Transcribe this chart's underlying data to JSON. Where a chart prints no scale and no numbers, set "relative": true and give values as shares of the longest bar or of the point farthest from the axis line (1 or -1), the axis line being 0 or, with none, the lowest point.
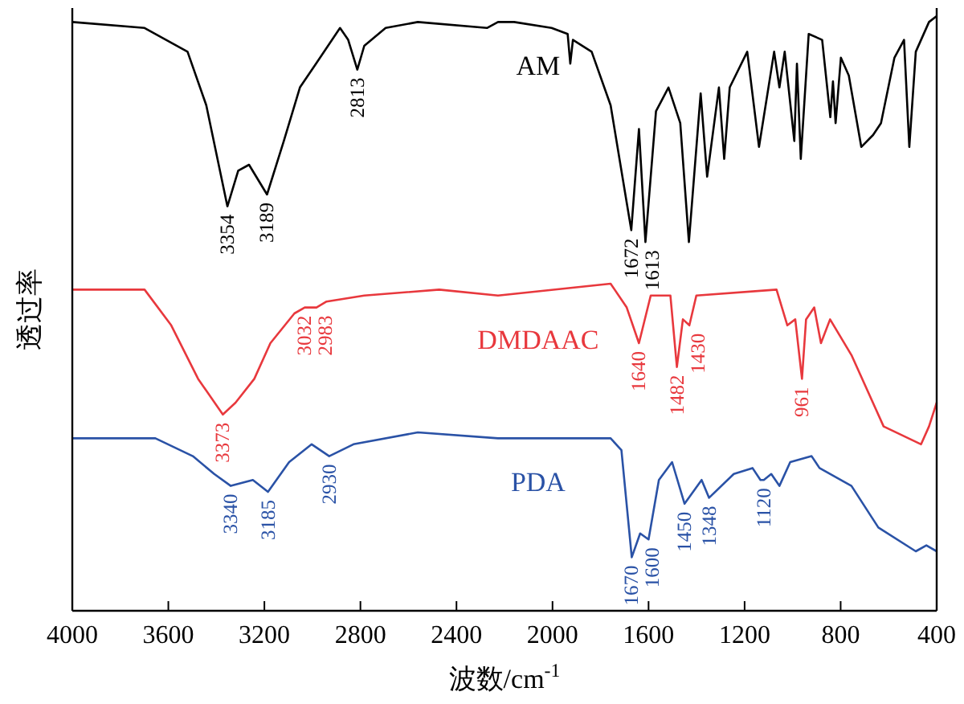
{
  "chart_data": {
    "type": "line",
    "relative": true,
    "xlabel": "波数/cm$^{-1}$",
    "ylabel": "透过率",
    "xlim": [
      4000,
      400
    ],
    "xticks": [
      4000,
      3600,
      3200,
      2800,
      2400,
      2000,
      1600,
      1200,
      800,
      400
    ],
    "grid": false,
    "marker": "none",
    "line_style": "solid",
    "series": [
      {
        "name": "AM",
        "color": "#000000",
        "x": [
          4000,
          3699,
          3520,
          3442,
          3354,
          3309,
          3264,
          3189,
          3119,
          3052,
          2985,
          2885,
          2851,
          2813,
          2784,
          2695,
          2561,
          2273,
          2227,
          2160,
          2004,
          1937,
          1926,
          1915,
          1837,
          1758,
          1672,
          1640,
          1613,
          1569,
          1517,
          1468,
          1432,
          1383,
          1356,
          1307,
          1285,
          1262,
          1189,
          1140,
          1077,
          1055,
          1033,
          993,
          982,
          966,
          933,
          877,
          843,
          832,
          821,
          799,
          766,
          714,
          665,
          632,
          576,
          536,
          514,
          487,
          432,
          400
        ],
        "values": [
          0.99,
          0.98,
          0.94,
          0.85,
          0.68,
          0.74,
          0.75,
          0.7,
          0.79,
          0.88,
          0.92,
          0.98,
          0.96,
          0.91,
          0.95,
          0.98,
          0.99,
          0.98,
          0.99,
          0.99,
          0.98,
          0.97,
          0.92,
          0.96,
          0.94,
          0.85,
          0.64,
          0.81,
          0.62,
          0.84,
          0.88,
          0.82,
          0.62,
          0.87,
          0.73,
          0.88,
          0.76,
          0.88,
          0.94,
          0.78,
          0.94,
          0.88,
          0.94,
          0.79,
          0.92,
          0.76,
          0.97,
          0.96,
          0.83,
          0.89,
          0.82,
          0.93,
          0.9,
          0.78,
          0.8,
          0.82,
          0.93,
          0.96,
          0.78,
          0.94,
          0.99,
          1.0
        ]
      },
      {
        "name": "DMDAAC",
        "color": "#e8383d",
        "x": [
          4000,
          3699,
          3588,
          3476,
          3373,
          3320,
          3242,
          3175,
          3075,
          3032,
          2983,
          2941,
          2784,
          2472,
          2227,
          1758,
          1691,
          1640,
          1591,
          1509,
          1482,
          1457,
          1430,
          1401,
          1067,
          1022,
          989,
          961,
          944,
          910,
          882,
          844,
          755,
          621,
          465,
          432,
          400
        ],
        "values": [
          0.54,
          0.54,
          0.48,
          0.39,
          0.33,
          0.35,
          0.39,
          0.45,
          0.5,
          0.51,
          0.51,
          0.52,
          0.53,
          0.54,
          0.53,
          0.55,
          0.51,
          0.45,
          0.53,
          0.53,
          0.41,
          0.49,
          0.48,
          0.53,
          0.54,
          0.48,
          0.49,
          0.39,
          0.49,
          0.51,
          0.45,
          0.49,
          0.43,
          0.31,
          0.28,
          0.31,
          0.35
        ]
      },
      {
        "name": "PDA",
        "color": "#2a52a6",
        "x": [
          4000,
          3654,
          3498,
          3409,
          3340,
          3248,
          3185,
          3097,
          3003,
          2930,
          2829,
          2561,
          2227,
          1758,
          1713,
          1670,
          1635,
          1600,
          1557,
          1502,
          1450,
          1379,
          1348,
          1245,
          1167,
          1134,
          1120,
          1089,
          1055,
          1010,
          921,
          888,
          755,
          643,
          487,
          443,
          400
        ],
        "values": [
          0.29,
          0.29,
          0.26,
          0.23,
          0.21,
          0.22,
          0.2,
          0.25,
          0.28,
          0.26,
          0.28,
          0.3,
          0.29,
          0.29,
          0.27,
          0.09,
          0.13,
          0.12,
          0.22,
          0.25,
          0.18,
          0.22,
          0.19,
          0.23,
          0.24,
          0.22,
          0.22,
          0.23,
          0.21,
          0.25,
          0.26,
          0.24,
          0.21,
          0.14,
          0.1,
          0.11,
          0.1
        ]
      }
    ],
    "annotations": [
      {
        "text": "3354",
        "x": 3354,
        "y": 0.68
      },
      {
        "text": "3189",
        "x": 3189,
        "y": 0.7
      },
      {
        "text": "2813",
        "x": 2813,
        "y": 0.91
      },
      {
        "text": "1672",
        "x": 1672,
        "y": 0.64
      },
      {
        "text": "1613",
        "x": 1613,
        "y": 0.62
      },
      {
        "text": "3373",
        "x": 3373,
        "y": 0.33
      },
      {
        "text": "3032",
        "x": 3032,
        "y": 0.51
      },
      {
        "text": "2983",
        "x": 2983,
        "y": 0.51
      },
      {
        "text": "1640",
        "x": 1640,
        "y": 0.45
      },
      {
        "text": "1482",
        "x": 1482,
        "y": 0.41
      },
      {
        "text": "1430",
        "x": 1430,
        "y": 0.48
      },
      {
        "text": "961",
        "x": 961,
        "y": 0.39
      },
      {
        "text": "3340",
        "x": 3340,
        "y": 0.21
      },
      {
        "text": "3185",
        "x": 3185,
        "y": 0.2
      },
      {
        "text": "2930",
        "x": 2930,
        "y": 0.26
      },
      {
        "text": "1670",
        "x": 1670,
        "y": 0.09
      },
      {
        "text": "1600",
        "x": 1600,
        "y": 0.12
      },
      {
        "text": "1450",
        "x": 1450,
        "y": 0.18
      },
      {
        "text": "1348",
        "x": 1348,
        "y": 0.19
      },
      {
        "text": "1120",
        "x": 1120,
        "y": 0.22
      }
    ]
  }
}
